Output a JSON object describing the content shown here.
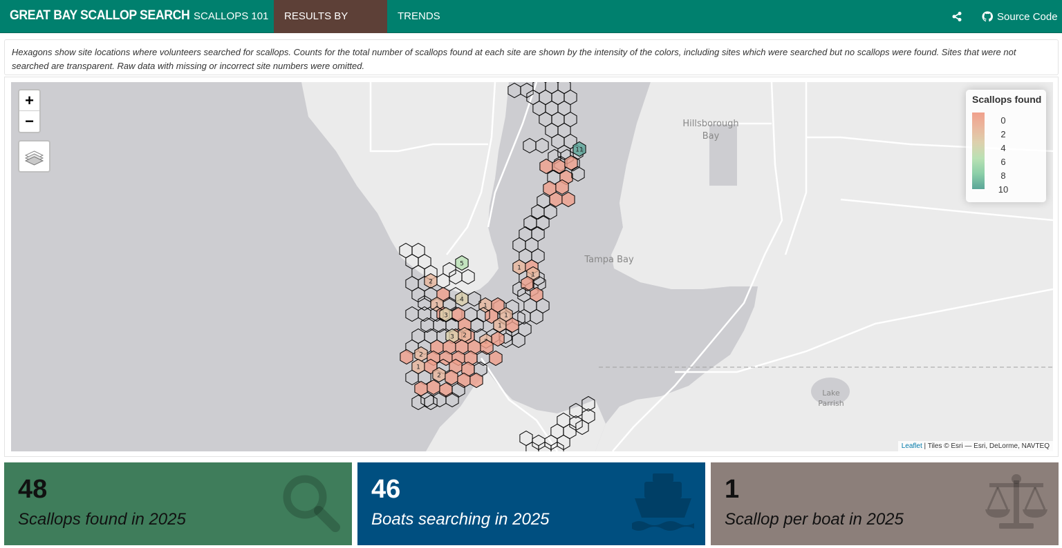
{
  "navbar": {
    "brand": "GREAT BAY SCALLOP SEARCH",
    "items": [
      {
        "label": "SCALLOPS 101",
        "active": false
      },
      {
        "label": "RESULTS BY YEAR",
        "active": true,
        "dropdown": true
      },
      {
        "label": "TRENDS",
        "active": false
      }
    ],
    "share_icon": "share-icon",
    "source_code_label": "Source Code",
    "source_code_icon": "github-icon",
    "colors": {
      "bg": "#00806e",
      "active": "#5d4037"
    }
  },
  "description": "Hexagons show site locations where volunteers searched for scallops. Counts for the total number of scallops found at each site are shown by the intensity of the colors, including sites which were searched but no scallops were found. Sites that were not searched are transparent. Raw data with missing or incorrect site numbers were omitted.",
  "map": {
    "place_labels": {
      "hillsborough_bay": [
        "Hillsborough",
        "Bay"
      ],
      "tampa_bay": "Tampa Bay",
      "lake_parrish": [
        "Lake",
        "Parrish"
      ]
    },
    "zoom_in": "+",
    "zoom_out": "−",
    "layers_icon": "layers-icon",
    "legend": {
      "title": "Scallops found",
      "labels": [
        "0",
        "2",
        "4",
        "6",
        "8",
        "10"
      ],
      "colors": [
        "#f0a08c",
        "#eab89e",
        "#dcd1ad",
        "#b9e1b4",
        "#8bcfa8",
        "#5aa598"
      ]
    },
    "attribution": {
      "leaflet": "Leaflet",
      "tiles": "| Tiles © Esri — Esri, DeLorme, NAVTEQ"
    }
  },
  "value_boxes": [
    {
      "value": "48",
      "caption": "Scallops found in 2025",
      "icon": "search-icon",
      "bg": "#3f7d5b"
    },
    {
      "value": "46",
      "caption": "Boats searching in 2025",
      "icon": "ship-icon",
      "bg": "#004f80"
    },
    {
      "value": "1",
      "caption": "Scallop per boat in 2025",
      "icon": "balance-scale-icon",
      "bg": "#8c7f7a"
    }
  ]
}
